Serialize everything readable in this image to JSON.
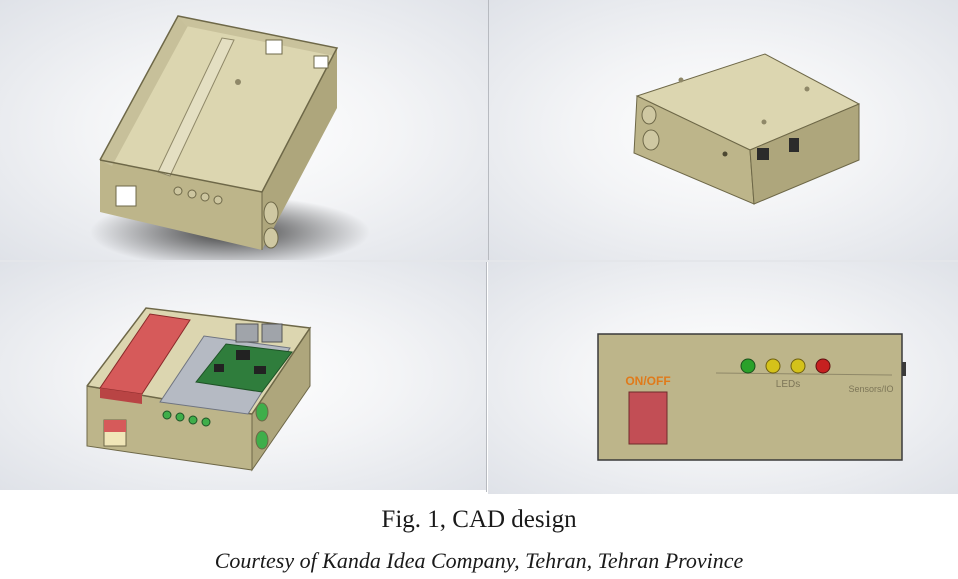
{
  "figure": {
    "caption": "Fig. 1, CAD design",
    "credit": "Courtesy of  Kanda Idea Company, Tehran, Tehran Province"
  },
  "panels": {
    "front_view": {
      "switch_label": "ON/OFF",
      "leds_label": "LEDs",
      "connector_label": "Sensors/IO",
      "led_colors": [
        "#2aa12a",
        "#d4c21a",
        "#d4c21a",
        "#c62020"
      ]
    }
  }
}
